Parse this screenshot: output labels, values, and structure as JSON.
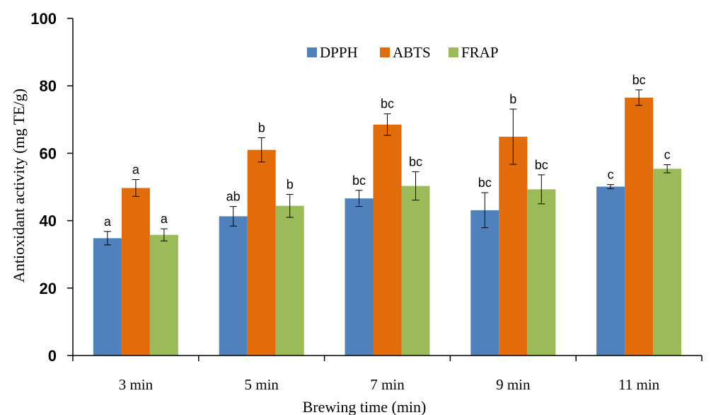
{
  "chart_data": {
    "type": "bar",
    "xlabel": "Brewing time (min)",
    "ylabel": "Antioxidant activity (mg TE/g)",
    "ylim": [
      0,
      100
    ],
    "yticks": [
      "0",
      "20",
      "40",
      "60",
      "80",
      "100"
    ],
    "categories": [
      "3 min",
      "5 min",
      "7 min",
      "9 min",
      "11 min"
    ],
    "legend_position": "top-center",
    "grid": false,
    "series": [
      {
        "name": "DPPH",
        "color": "#4F81BD",
        "values": [
          34.8,
          41.3,
          46.6,
          43.1,
          50.1
        ],
        "errors": [
          2.0,
          2.9,
          2.4,
          5.2,
          0.6
        ],
        "labels": [
          "a",
          "ab",
          "bc",
          "bc",
          "c"
        ]
      },
      {
        "name": "ABTS",
        "color": "#E36C0A",
        "values": [
          49.7,
          61.0,
          68.5,
          64.9,
          76.5
        ],
        "errors": [
          2.5,
          3.6,
          3.2,
          8.2,
          2.3
        ],
        "labels": [
          "a",
          "b",
          "bc",
          "b",
          "bc"
        ]
      },
      {
        "name": "FRAP",
        "color": "#9BBB59",
        "values": [
          35.8,
          44.4,
          50.3,
          49.3,
          55.4
        ],
        "errors": [
          1.8,
          3.4,
          4.2,
          4.3,
          1.2
        ],
        "labels": [
          "a",
          "b",
          "bc",
          "bc",
          "c"
        ]
      }
    ]
  }
}
